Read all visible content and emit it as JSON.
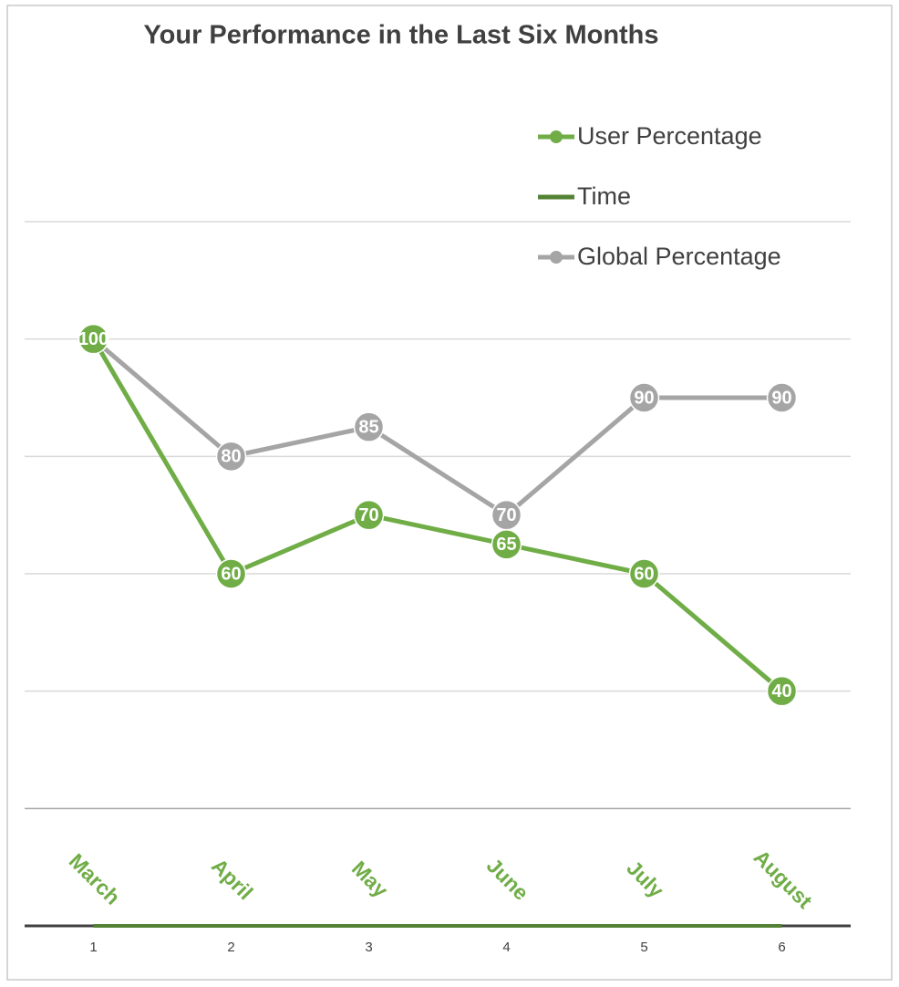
{
  "chart_data": {
    "type": "line",
    "title": "Your Performance in the Last Six Months",
    "x": [
      1,
      2,
      3,
      4,
      5,
      6
    ],
    "xlim": [
      0.5,
      6.5
    ],
    "xticks": [
      1,
      2,
      3,
      4,
      5,
      6
    ],
    "ylim": [
      0,
      120
    ],
    "yticks": [
      0,
      20,
      40,
      60,
      80,
      100,
      120
    ],
    "grid": true,
    "legend": "top-right",
    "series": [
      {
        "name": "User Percentage",
        "color": "#70ad47",
        "markers": true,
        "values": [
          100,
          60,
          70,
          65,
          60,
          40
        ]
      },
      {
        "name": "Time",
        "color": "#548235",
        "markers": false,
        "values": [
          0,
          0,
          0,
          0,
          0,
          0
        ],
        "data_labels": [
          "March",
          "April",
          "May",
          "June",
          "July",
          "August"
        ]
      },
      {
        "name": "Global Percentage",
        "color": "#a5a5a5",
        "markers": true,
        "values": [
          100,
          80,
          85,
          70,
          90,
          90
        ]
      }
    ]
  }
}
